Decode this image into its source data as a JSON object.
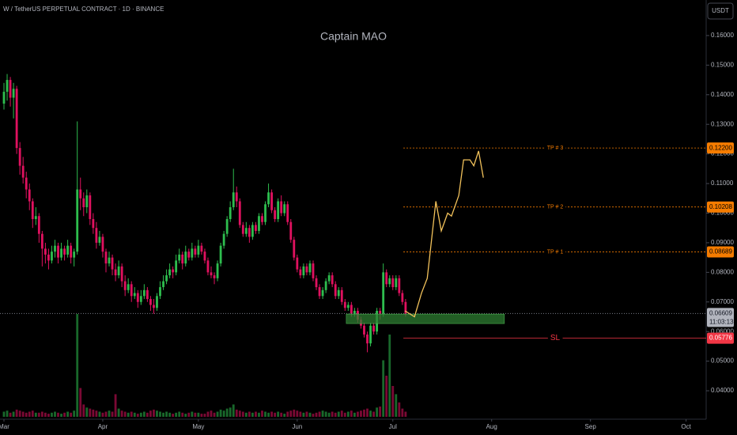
{
  "header": "W / TetherUS PERPETUAL CONTRACT · 1D · BINANCE",
  "currency": "USDT",
  "chart_data": {
    "type": "candlestick",
    "title": "Captain MAO",
    "x": [
      0,
      1,
      2,
      3,
      4,
      5,
      6,
      7,
      8,
      9,
      10,
      11,
      12,
      13,
      14,
      15,
      16,
      17,
      18,
      19,
      20,
      21,
      22,
      23,
      24,
      25,
      26,
      27,
      28,
      29,
      30,
      31,
      32,
      33,
      34,
      35,
      36,
      37,
      38,
      39,
      40,
      41,
      42,
      43,
      44,
      45,
      46,
      47,
      48,
      49,
      50,
      51,
      52,
      53,
      54,
      55,
      56,
      57,
      58,
      59,
      60,
      61,
      62,
      63,
      64,
      65,
      66,
      67,
      68,
      69,
      70,
      71,
      72,
      73,
      74,
      75,
      76,
      77,
      78,
      79,
      80,
      81,
      82,
      83,
      84,
      85,
      86,
      87,
      88,
      89,
      90,
      91,
      92,
      93,
      94,
      95,
      96,
      97,
      98,
      99,
      100,
      101,
      102,
      103,
      104,
      105,
      106,
      107,
      108,
      109,
      110,
      111,
      112,
      113,
      114,
      115,
      116,
      117,
      118,
      119,
      120,
      121,
      122,
      123,
      124,
      125,
      126
    ],
    "ohlc": [
      [
        0.137,
        0.144,
        0.135,
        0.141
      ],
      [
        0.141,
        0.147,
        0.138,
        0.145
      ],
      [
        0.145,
        0.146,
        0.136,
        0.139
      ],
      [
        0.139,
        0.144,
        0.132,
        0.142
      ],
      [
        0.142,
        0.143,
        0.12,
        0.122
      ],
      [
        0.122,
        0.124,
        0.113,
        0.116
      ],
      [
        0.116,
        0.119,
        0.11,
        0.112
      ],
      [
        0.112,
        0.114,
        0.105,
        0.108
      ],
      [
        0.108,
        0.11,
        0.101,
        0.104
      ],
      [
        0.104,
        0.105,
        0.095,
        0.098
      ],
      [
        0.098,
        0.102,
        0.096,
        0.099
      ],
      [
        0.099,
        0.1,
        0.09,
        0.093
      ],
      [
        0.093,
        0.094,
        0.082,
        0.088
      ],
      [
        0.088,
        0.09,
        0.083,
        0.086
      ],
      [
        0.086,
        0.088,
        0.081,
        0.084
      ],
      [
        0.084,
        0.089,
        0.083,
        0.087
      ],
      [
        0.087,
        0.091,
        0.085,
        0.089
      ],
      [
        0.089,
        0.09,
        0.083,
        0.085
      ],
      [
        0.085,
        0.09,
        0.084,
        0.088
      ],
      [
        0.088,
        0.089,
        0.084,
        0.086
      ],
      [
        0.086,
        0.091,
        0.085,
        0.089
      ],
      [
        0.089,
        0.09,
        0.083,
        0.085
      ],
      [
        0.085,
        0.088,
        0.082,
        0.087
      ],
      [
        0.087,
        0.131,
        0.086,
        0.108
      ],
      [
        0.108,
        0.112,
        0.101,
        0.105
      ],
      [
        0.105,
        0.107,
        0.099,
        0.102
      ],
      [
        0.102,
        0.108,
        0.1,
        0.106
      ],
      [
        0.106,
        0.107,
        0.096,
        0.098
      ],
      [
        0.098,
        0.1,
        0.093,
        0.095
      ],
      [
        0.095,
        0.097,
        0.088,
        0.09
      ],
      [
        0.09,
        0.094,
        0.089,
        0.092
      ],
      [
        0.092,
        0.093,
        0.085,
        0.087
      ],
      [
        0.087,
        0.088,
        0.08,
        0.083
      ],
      [
        0.083,
        0.087,
        0.082,
        0.085
      ],
      [
        0.085,
        0.086,
        0.079,
        0.081
      ],
      [
        0.081,
        0.083,
        0.077,
        0.079
      ],
      [
        0.079,
        0.084,
        0.078,
        0.082
      ],
      [
        0.082,
        0.083,
        0.075,
        0.077
      ],
      [
        0.077,
        0.079,
        0.072,
        0.074
      ],
      [
        0.074,
        0.078,
        0.073,
        0.076
      ],
      [
        0.076,
        0.077,
        0.07,
        0.072
      ],
      [
        0.072,
        0.075,
        0.071,
        0.073
      ],
      [
        0.073,
        0.074,
        0.068,
        0.07
      ],
      [
        0.07,
        0.074,
        0.069,
        0.072
      ],
      [
        0.072,
        0.076,
        0.071,
        0.074
      ],
      [
        0.074,
        0.075,
        0.07,
        0.071
      ],
      [
        0.071,
        0.072,
        0.067,
        0.069
      ],
      [
        0.069,
        0.071,
        0.066,
        0.068
      ],
      [
        0.068,
        0.073,
        0.067,
        0.072
      ],
      [
        0.072,
        0.077,
        0.071,
        0.075
      ],
      [
        0.075,
        0.079,
        0.074,
        0.077
      ],
      [
        0.077,
        0.081,
        0.076,
        0.079
      ],
      [
        0.079,
        0.083,
        0.078,
        0.081
      ],
      [
        0.081,
        0.082,
        0.078,
        0.08
      ],
      [
        0.08,
        0.086,
        0.079,
        0.084
      ],
      [
        0.084,
        0.088,
        0.083,
        0.086
      ],
      [
        0.086,
        0.087,
        0.081,
        0.083
      ],
      [
        0.083,
        0.089,
        0.082,
        0.087
      ],
      [
        0.087,
        0.088,
        0.084,
        0.085
      ],
      [
        0.085,
        0.09,
        0.084,
        0.088
      ],
      [
        0.088,
        0.089,
        0.085,
        0.086
      ],
      [
        0.086,
        0.091,
        0.085,
        0.089
      ],
      [
        0.089,
        0.09,
        0.086,
        0.087
      ],
      [
        0.087,
        0.088,
        0.083,
        0.084
      ],
      [
        0.084,
        0.085,
        0.079,
        0.08
      ],
      [
        0.08,
        0.082,
        0.078,
        0.079
      ],
      [
        0.079,
        0.08,
        0.076,
        0.078
      ],
      [
        0.078,
        0.084,
        0.077,
        0.083
      ],
      [
        0.083,
        0.09,
        0.082,
        0.089
      ],
      [
        0.089,
        0.094,
        0.088,
        0.093
      ],
      [
        0.093,
        0.099,
        0.092,
        0.098
      ],
      [
        0.098,
        0.104,
        0.097,
        0.102
      ],
      [
        0.102,
        0.115,
        0.101,
        0.107
      ],
      [
        0.107,
        0.109,
        0.102,
        0.104
      ],
      [
        0.104,
        0.105,
        0.095,
        0.096
      ],
      [
        0.096,
        0.097,
        0.092,
        0.093
      ],
      [
        0.093,
        0.097,
        0.092,
        0.095
      ],
      [
        0.095,
        0.096,
        0.09,
        0.092
      ],
      [
        0.092,
        0.097,
        0.091,
        0.096
      ],
      [
        0.096,
        0.097,
        0.093,
        0.094
      ],
      [
        0.094,
        0.1,
        0.093,
        0.099
      ],
      [
        0.099,
        0.1,
        0.096,
        0.097
      ],
      [
        0.097,
        0.104,
        0.096,
        0.103
      ],
      [
        0.103,
        0.11,
        0.102,
        0.107
      ],
      [
        0.107,
        0.108,
        0.1,
        0.101
      ],
      [
        0.101,
        0.102,
        0.097,
        0.098
      ],
      [
        0.098,
        0.105,
        0.097,
        0.104
      ],
      [
        0.104,
        0.106,
        0.099,
        0.1
      ],
      [
        0.1,
        0.104,
        0.099,
        0.103
      ],
      [
        0.103,
        0.104,
        0.096,
        0.097
      ],
      [
        0.097,
        0.098,
        0.09,
        0.091
      ],
      [
        0.091,
        0.092,
        0.084,
        0.085
      ],
      [
        0.085,
        0.086,
        0.08,
        0.081
      ],
      [
        0.081,
        0.082,
        0.078,
        0.079
      ],
      [
        0.079,
        0.083,
        0.078,
        0.082
      ],
      [
        0.082,
        0.083,
        0.079,
        0.08
      ],
      [
        0.08,
        0.084,
        0.079,
        0.083
      ],
      [
        0.083,
        0.084,
        0.077,
        0.078
      ],
      [
        0.078,
        0.079,
        0.074,
        0.075
      ],
      [
        0.075,
        0.076,
        0.071,
        0.072
      ],
      [
        0.072,
        0.075,
        0.071,
        0.074
      ],
      [
        0.074,
        0.078,
        0.073,
        0.077
      ],
      [
        0.077,
        0.08,
        0.076,
        0.079
      ],
      [
        0.079,
        0.08,
        0.075,
        0.076
      ],
      [
        0.076,
        0.077,
        0.071,
        0.072
      ],
      [
        0.072,
        0.075,
        0.071,
        0.074
      ],
      [
        0.074,
        0.075,
        0.069,
        0.07
      ],
      [
        0.07,
        0.071,
        0.067,
        0.068
      ],
      [
        0.068,
        0.07,
        0.067,
        0.069
      ],
      [
        0.069,
        0.07,
        0.065,
        0.066
      ],
      [
        0.066,
        0.068,
        0.065,
        0.067
      ],
      [
        0.067,
        0.068,
        0.063,
        0.064
      ],
      [
        0.064,
        0.065,
        0.061,
        0.062
      ],
      [
        0.062,
        0.063,
        0.058,
        0.059
      ],
      [
        0.059,
        0.06,
        0.053,
        0.056
      ],
      [
        0.056,
        0.063,
        0.055,
        0.062
      ],
      [
        0.062,
        0.063,
        0.059,
        0.06
      ],
      [
        0.06,
        0.068,
        0.059,
        0.067
      ],
      [
        0.067,
        0.068,
        0.064,
        0.066
      ],
      [
        0.066,
        0.083,
        0.065,
        0.08
      ],
      [
        0.08,
        0.081,
        0.075,
        0.076
      ],
      [
        0.076,
        0.079,
        0.075,
        0.078
      ],
      [
        0.078,
        0.079,
        0.074,
        0.075
      ],
      [
        0.075,
        0.079,
        0.074,
        0.078
      ],
      [
        0.078,
        0.079,
        0.072,
        0.073
      ],
      [
        0.073,
        0.074,
        0.069,
        0.07
      ],
      [
        0.07,
        0.071,
        0.065,
        0.066
      ]
    ],
    "volume": [
      5,
      6,
      4,
      5,
      7,
      6,
      5,
      4,
      5,
      6,
      4,
      4,
      5,
      4,
      3,
      4,
      5,
      4,
      3,
      4,
      5,
      4,
      6,
      100,
      28,
      12,
      9,
      8,
      7,
      6,
      5,
      4,
      5,
      6,
      5,
      22,
      8,
      6,
      5,
      4,
      5,
      4,
      3,
      4,
      5,
      4,
      6,
      7,
      6,
      5,
      4,
      5,
      4,
      3,
      4,
      5,
      4,
      3,
      4,
      5,
      4,
      4,
      3,
      3,
      5,
      6,
      4,
      5,
      7,
      6,
      8,
      9,
      12,
      7,
      6,
      5,
      4,
      5,
      4,
      5,
      4,
      6,
      5,
      4,
      5,
      4,
      5,
      4,
      3,
      5,
      6,
      7,
      6,
      5,
      4,
      5,
      4,
      3,
      4,
      5,
      6,
      5,
      4,
      5,
      4,
      5,
      6,
      4,
      5,
      6,
      4,
      5,
      6,
      7,
      8,
      6,
      5,
      9,
      10,
      55,
      40,
      80,
      30,
      22,
      14,
      8,
      5
    ],
    "up_color": "#2ebd4e",
    "down_color": "#e0115f",
    "forecast": {
      "color": "#f2c25b",
      "x": [
        125.8,
        128.8,
        131,
        132.8,
        135.5,
        137.2,
        139.2,
        140.4,
        142.7,
        144.2,
        146.2,
        147.4,
        148.9,
        150.4
      ],
      "y": [
        0.067,
        0.065,
        0.073,
        0.078,
        0.104,
        0.094,
        0.1,
        0.099,
        0.106,
        0.118,
        0.118,
        0.116,
        0.121,
        0.112
      ]
    },
    "zone": {
      "x": [
        107.4,
        157
      ],
      "y": [
        0.0627,
        0.0659
      ],
      "color": "#2e7d32"
    },
    "levels": [
      {
        "name": "TP # 3",
        "value": 0.122,
        "label": "0.12200",
        "color": "#f57c00"
      },
      {
        "name": "TP # 2",
        "value": 0.10208,
        "label": "0.10208",
        "color": "#f57c00"
      },
      {
        "name": "TP # 1",
        "value": 0.08689,
        "label": "0.08689",
        "color": "#f57c00"
      },
      {
        "name": "SL",
        "value": 0.05776,
        "label": "0.05776",
        "color": "#f23645"
      }
    ],
    "levels_start": 125.3,
    "last_price": {
      "value": 0.06609,
      "label": "0.06609",
      "countdown": "11:03:13"
    },
    "xlim": [
      -1.24,
      220.3
    ],
    "ylim": [
      0.0304,
      0.172
    ],
    "xticks": [
      {
        "value": 0,
        "label": "Mar"
      },
      {
        "value": 31,
        "label": "Apr"
      },
      {
        "value": 61,
        "label": "May"
      },
      {
        "value": 92,
        "label": "Jun"
      },
      {
        "value": 122,
        "label": "Jul"
      },
      {
        "value": 153,
        "label": "Aug"
      },
      {
        "value": 184,
        "label": "Sep"
      },
      {
        "value": 214,
        "label": "Oct"
      }
    ],
    "yticks": [
      {
        "value": 0.04,
        "label": "0.04000"
      },
      {
        "value": 0.05,
        "label": "0.05000"
      },
      {
        "value": 0.06,
        "label": "0.06000"
      },
      {
        "value": 0.07,
        "label": "0.07000"
      },
      {
        "value": 0.08,
        "label": "0.08000"
      },
      {
        "value": 0.09,
        "label": "0.09000"
      },
      {
        "value": 0.1,
        "label": "0.10000"
      },
      {
        "value": 0.11,
        "label": "0.11000"
      },
      {
        "value": 0.12,
        "label": "0.12000"
      },
      {
        "value": 0.13,
        "label": "0.13000"
      },
      {
        "value": 0.14,
        "label": "0.14000"
      },
      {
        "value": 0.15,
        "label": "0.15000"
      },
      {
        "value": 0.16,
        "label": "0.16000"
      }
    ]
  }
}
